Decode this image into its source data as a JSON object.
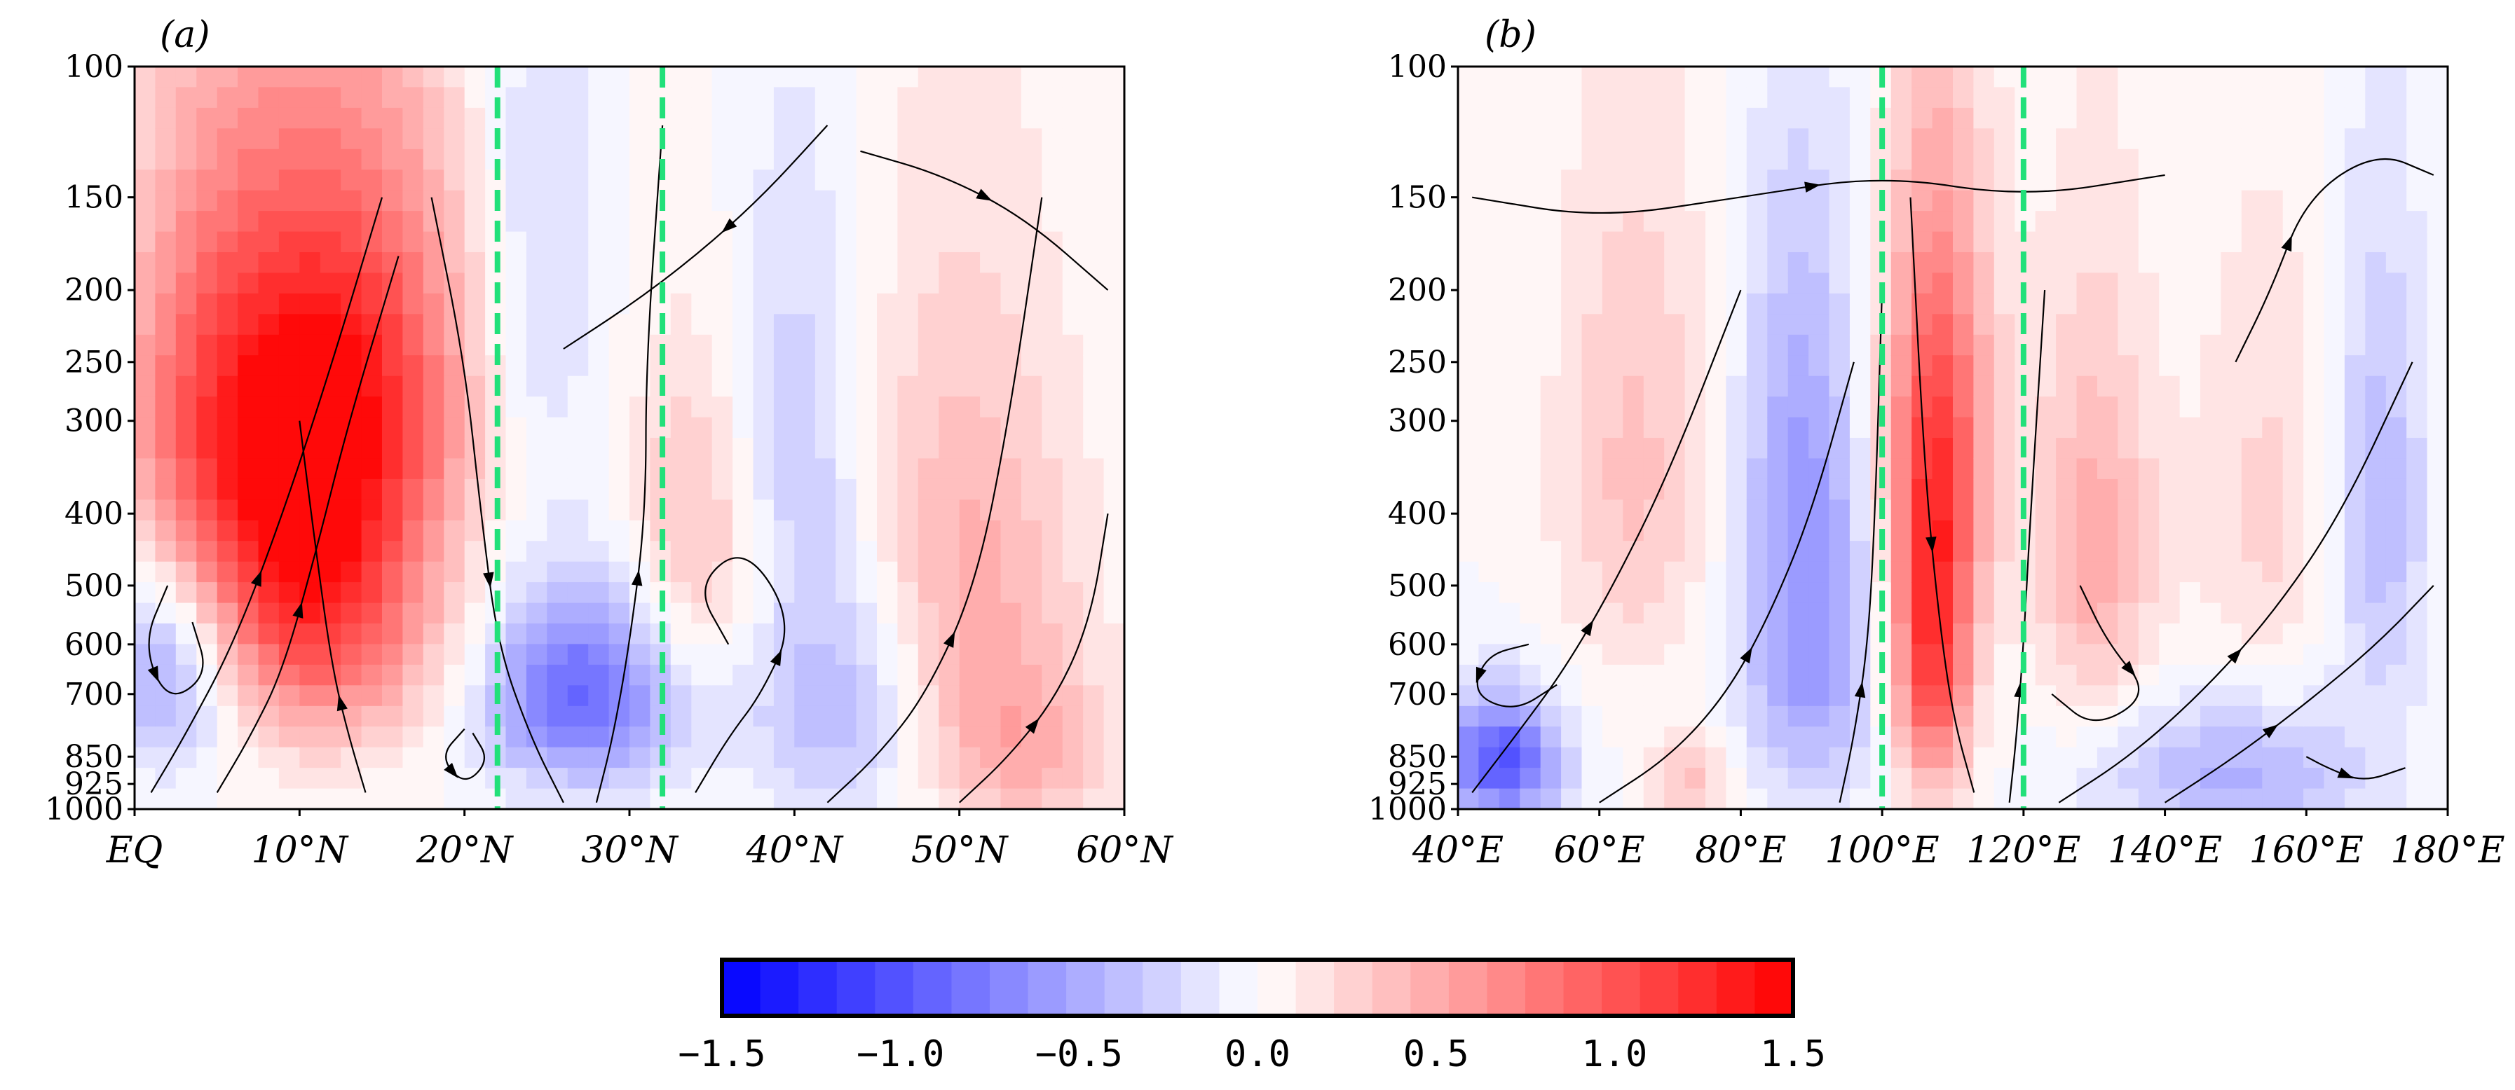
{
  "chart_data": [
    {
      "type": "heatmap",
      "panel_label": "(a)",
      "xlabel": "",
      "ylabel": "",
      "x_ticks": [
        "EQ",
        "10°N",
        "20°N",
        "30°N",
        "40°N",
        "50°N",
        "60°N"
      ],
      "x_values": [
        0,
        10,
        20,
        30,
        40,
        50,
        60
      ],
      "xlim": [
        0,
        60
      ],
      "y_ticks": [
        "100",
        "150",
        "200",
        "250",
        "300",
        "400",
        "500",
        "600",
        "700",
        "850",
        "925",
        "1000"
      ],
      "y_values": [
        100,
        150,
        200,
        250,
        300,
        400,
        500,
        600,
        700,
        850,
        925,
        1000
      ],
      "ylim": [
        1000,
        100
      ],
      "reference_lines": [
        22,
        32
      ],
      "reference_line_color": "#22e07a",
      "anomaly_features": [
        {
          "x": 11,
          "p": 480,
          "value": 1.3,
          "sx": 5,
          "sp": 200
        },
        {
          "x": 13,
          "p": 250,
          "value": 0.8,
          "sx": 6,
          "sp": 120
        },
        {
          "x": 4,
          "p": 300,
          "value": 0.6,
          "sx": 4,
          "sp": 150
        },
        {
          "x": 2,
          "p": 650,
          "value": -0.6,
          "sx": 3,
          "sp": 150
        },
        {
          "x": 27,
          "p": 700,
          "value": -0.9,
          "sx": 4,
          "sp": 150
        },
        {
          "x": 24,
          "p": 200,
          "value": -0.3,
          "sx": 3,
          "sp": 120
        },
        {
          "x": 34,
          "p": 430,
          "value": 0.4,
          "sx": 3,
          "sp": 150
        },
        {
          "x": 43,
          "p": 700,
          "value": -0.5,
          "sx": 4,
          "sp": 200
        },
        {
          "x": 40,
          "p": 300,
          "value": -0.3,
          "sx": 3,
          "sp": 150
        },
        {
          "x": 50,
          "p": 500,
          "value": 0.5,
          "sx": 5,
          "sp": 250
        },
        {
          "x": 54,
          "p": 850,
          "value": 0.4,
          "sx": 4,
          "sp": 150
        }
      ],
      "streamlines": [
        {
          "points": [
            [
              1,
              950
            ],
            [
              3,
              800
            ],
            [
              6,
              600
            ],
            [
              9,
              400
            ],
            [
              12,
              250
            ],
            [
              15,
              150
            ]
          ]
        },
        {
          "points": [
            [
              5,
              950
            ],
            [
              7,
              800
            ],
            [
              9,
              650
            ],
            [
              11,
              450
            ],
            [
              13,
              300
            ],
            [
              16,
              180
            ]
          ]
        },
        {
          "points": [
            [
              14,
              950
            ],
            [
              13,
              800
            ],
            [
              12,
              650
            ],
            [
              11,
              450
            ],
            [
              10,
              300
            ]
          ]
        },
        {
          "points": [
            [
              18,
              150
            ],
            [
              20,
              250
            ],
            [
              21,
              400
            ],
            [
              22,
              600
            ],
            [
              24,
              800
            ],
            [
              26,
              980
            ]
          ]
        },
        {
          "points": [
            [
              28,
              980
            ],
            [
              29,
              800
            ],
            [
              30,
              600
            ],
            [
              31,
              400
            ],
            [
              31,
              250
            ],
            [
              32,
              120
            ]
          ]
        },
        {
          "points": [
            [
              34,
              950
            ],
            [
              36,
              800
            ],
            [
              38,
              700
            ],
            [
              40,
              560
            ],
            [
              37,
              440
            ],
            [
              34,
              500
            ],
            [
              36,
              600
            ]
          ]
        },
        {
          "points": [
            [
              42,
              980
            ],
            [
              45,
              850
            ],
            [
              48,
              700
            ],
            [
              51,
              500
            ],
            [
              53,
              300
            ],
            [
              55,
              150
            ]
          ]
        },
        {
          "points": [
            [
              50,
              980
            ],
            [
              53,
              850
            ],
            [
              56,
              700
            ],
            [
              58,
              550
            ],
            [
              59,
              400
            ]
          ]
        },
        {
          "points": [
            [
              2,
              500
            ],
            [
              0.5,
              600
            ],
            [
              2,
              720
            ],
            [
              4.5,
              660
            ],
            [
              3.5,
              560
            ]
          ]
        },
        {
          "points": [
            [
              20,
              780
            ],
            [
              18.5,
              850
            ],
            [
              20,
              930
            ],
            [
              21.5,
              860
            ],
            [
              20.5,
              790
            ]
          ]
        },
        {
          "points": [
            [
              42,
              120
            ],
            [
              38,
              150
            ],
            [
              34,
              180
            ],
            [
              30,
              210
            ],
            [
              26,
              240
            ]
          ]
        },
        {
          "points": [
            [
              44,
              130
            ],
            [
              49,
              140
            ],
            [
              54,
              160
            ],
            [
              59,
              200
            ]
          ]
        }
      ]
    },
    {
      "type": "heatmap",
      "panel_label": "(b)",
      "xlabel": "",
      "ylabel": "",
      "x_ticks": [
        "40°E",
        "60°E",
        "80°E",
        "100°E",
        "120°E",
        "140°E",
        "160°E",
        "180°E"
      ],
      "x_values": [
        40,
        60,
        80,
        100,
        120,
        140,
        160,
        180
      ],
      "xlim": [
        40,
        180
      ],
      "y_ticks": [
        "100",
        "150",
        "200",
        "250",
        "300",
        "400",
        "500",
        "600",
        "700",
        "850",
        "925",
        "1000"
      ],
      "y_values": [
        100,
        150,
        200,
        250,
        300,
        400,
        500,
        600,
        700,
        850,
        925,
        1000
      ],
      "ylim": [
        1000,
        100
      ],
      "reference_lines": [
        100,
        120
      ],
      "reference_line_color": "#22e07a",
      "anomaly_features": [
        {
          "x": 107,
          "p": 600,
          "value": 1.2,
          "sx": 4,
          "sp": 220
        },
        {
          "x": 108,
          "p": 300,
          "value": 0.7,
          "sx": 6,
          "sp": 150
        },
        {
          "x": 46,
          "p": 860,
          "value": -1.0,
          "sx": 6,
          "sp": 120
        },
        {
          "x": 90,
          "p": 620,
          "value": -0.6,
          "sx": 7,
          "sp": 220
        },
        {
          "x": 88,
          "p": 300,
          "value": -0.35,
          "sx": 6,
          "sp": 150
        },
        {
          "x": 65,
          "p": 350,
          "value": 0.35,
          "sx": 8,
          "sp": 200
        },
        {
          "x": 73,
          "p": 930,
          "value": 0.35,
          "sx": 4,
          "sp": 100
        },
        {
          "x": 130,
          "p": 450,
          "value": 0.5,
          "sx": 6,
          "sp": 200
        },
        {
          "x": 150,
          "p": 900,
          "value": -0.45,
          "sx": 14,
          "sp": 150
        },
        {
          "x": 170,
          "p": 400,
          "value": -0.45,
          "sx": 5,
          "sp": 200
        },
        {
          "x": 155,
          "p": 400,
          "value": 0.25,
          "sx": 8,
          "sp": 200
        }
      ],
      "streamlines": [
        {
          "points": [
            [
              42,
              950
            ],
            [
              48,
              800
            ],
            [
              55,
              650
            ],
            [
              62,
              500
            ],
            [
              70,
              350
            ],
            [
              80,
              200
            ]
          ]
        },
        {
          "points": [
            [
              60,
              980
            ],
            [
              70,
              850
            ],
            [
              78,
              700
            ],
            [
              84,
              550
            ],
            [
              90,
              400
            ],
            [
              96,
              250
            ]
          ]
        },
        {
          "points": [
            [
              94,
              980
            ],
            [
              96,
              800
            ],
            [
              98,
              600
            ],
            [
              99,
              400
            ],
            [
              100,
              200
            ]
          ]
        },
        {
          "points": [
            [
              104,
              150
            ],
            [
              106,
              350
            ],
            [
              108,
              550
            ],
            [
              110,
              750
            ],
            [
              113,
              950
            ]
          ]
        },
        {
          "points": [
            [
              118,
              980
            ],
            [
              119,
              800
            ],
            [
              120,
              600
            ],
            [
              121,
              400
            ],
            [
              123,
              200
            ]
          ]
        },
        {
          "points": [
            [
              125,
              980
            ],
            [
              135,
              850
            ],
            [
              145,
              700
            ],
            [
              155,
              550
            ],
            [
              165,
              400
            ],
            [
              175,
              250
            ]
          ]
        },
        {
          "points": [
            [
              140,
              980
            ],
            [
              150,
              850
            ],
            [
              160,
              720
            ],
            [
              170,
              600
            ],
            [
              178,
              500
            ]
          ]
        },
        {
          "points": [
            [
              50,
              600
            ],
            [
              44,
              620
            ],
            [
              42,
              700
            ],
            [
              48,
              740
            ],
            [
              54,
              680
            ]
          ]
        },
        {
          "points": [
            [
              160,
              850
            ],
            [
              163,
              880
            ],
            [
              168,
              920
            ],
            [
              174,
              880
            ]
          ]
        },
        {
          "points": [
            [
              42,
              150
            ],
            [
              60,
              160
            ],
            [
              80,
              150
            ],
            [
              100,
              140
            ],
            [
              120,
              150
            ],
            [
              140,
              140
            ]
          ]
        },
        {
          "points": [
            [
              150,
              250
            ],
            [
              155,
              200
            ],
            [
              160,
              150
            ],
            [
              170,
              130
            ],
            [
              178,
              140
            ]
          ]
        },
        {
          "points": [
            [
              128,
              500
            ],
            [
              132,
              600
            ],
            [
              138,
              700
            ],
            [
              130,
              780
            ],
            [
              124,
              700
            ]
          ]
        }
      ]
    }
  ],
  "colorbar": {
    "min": -1.5,
    "max": 1.5,
    "levels": 28,
    "tick_labels": [
      "−1.5",
      "−1.0",
      "−0.5",
      "0.0",
      "0.5",
      "1.0",
      "1.5"
    ],
    "tick_values": [
      -1.5,
      -1.0,
      -0.5,
      0.0,
      0.5,
      1.0,
      1.5
    ],
    "color_low": "#0000ff",
    "color_mid": "#ffffff",
    "color_high": "#ff0000"
  }
}
